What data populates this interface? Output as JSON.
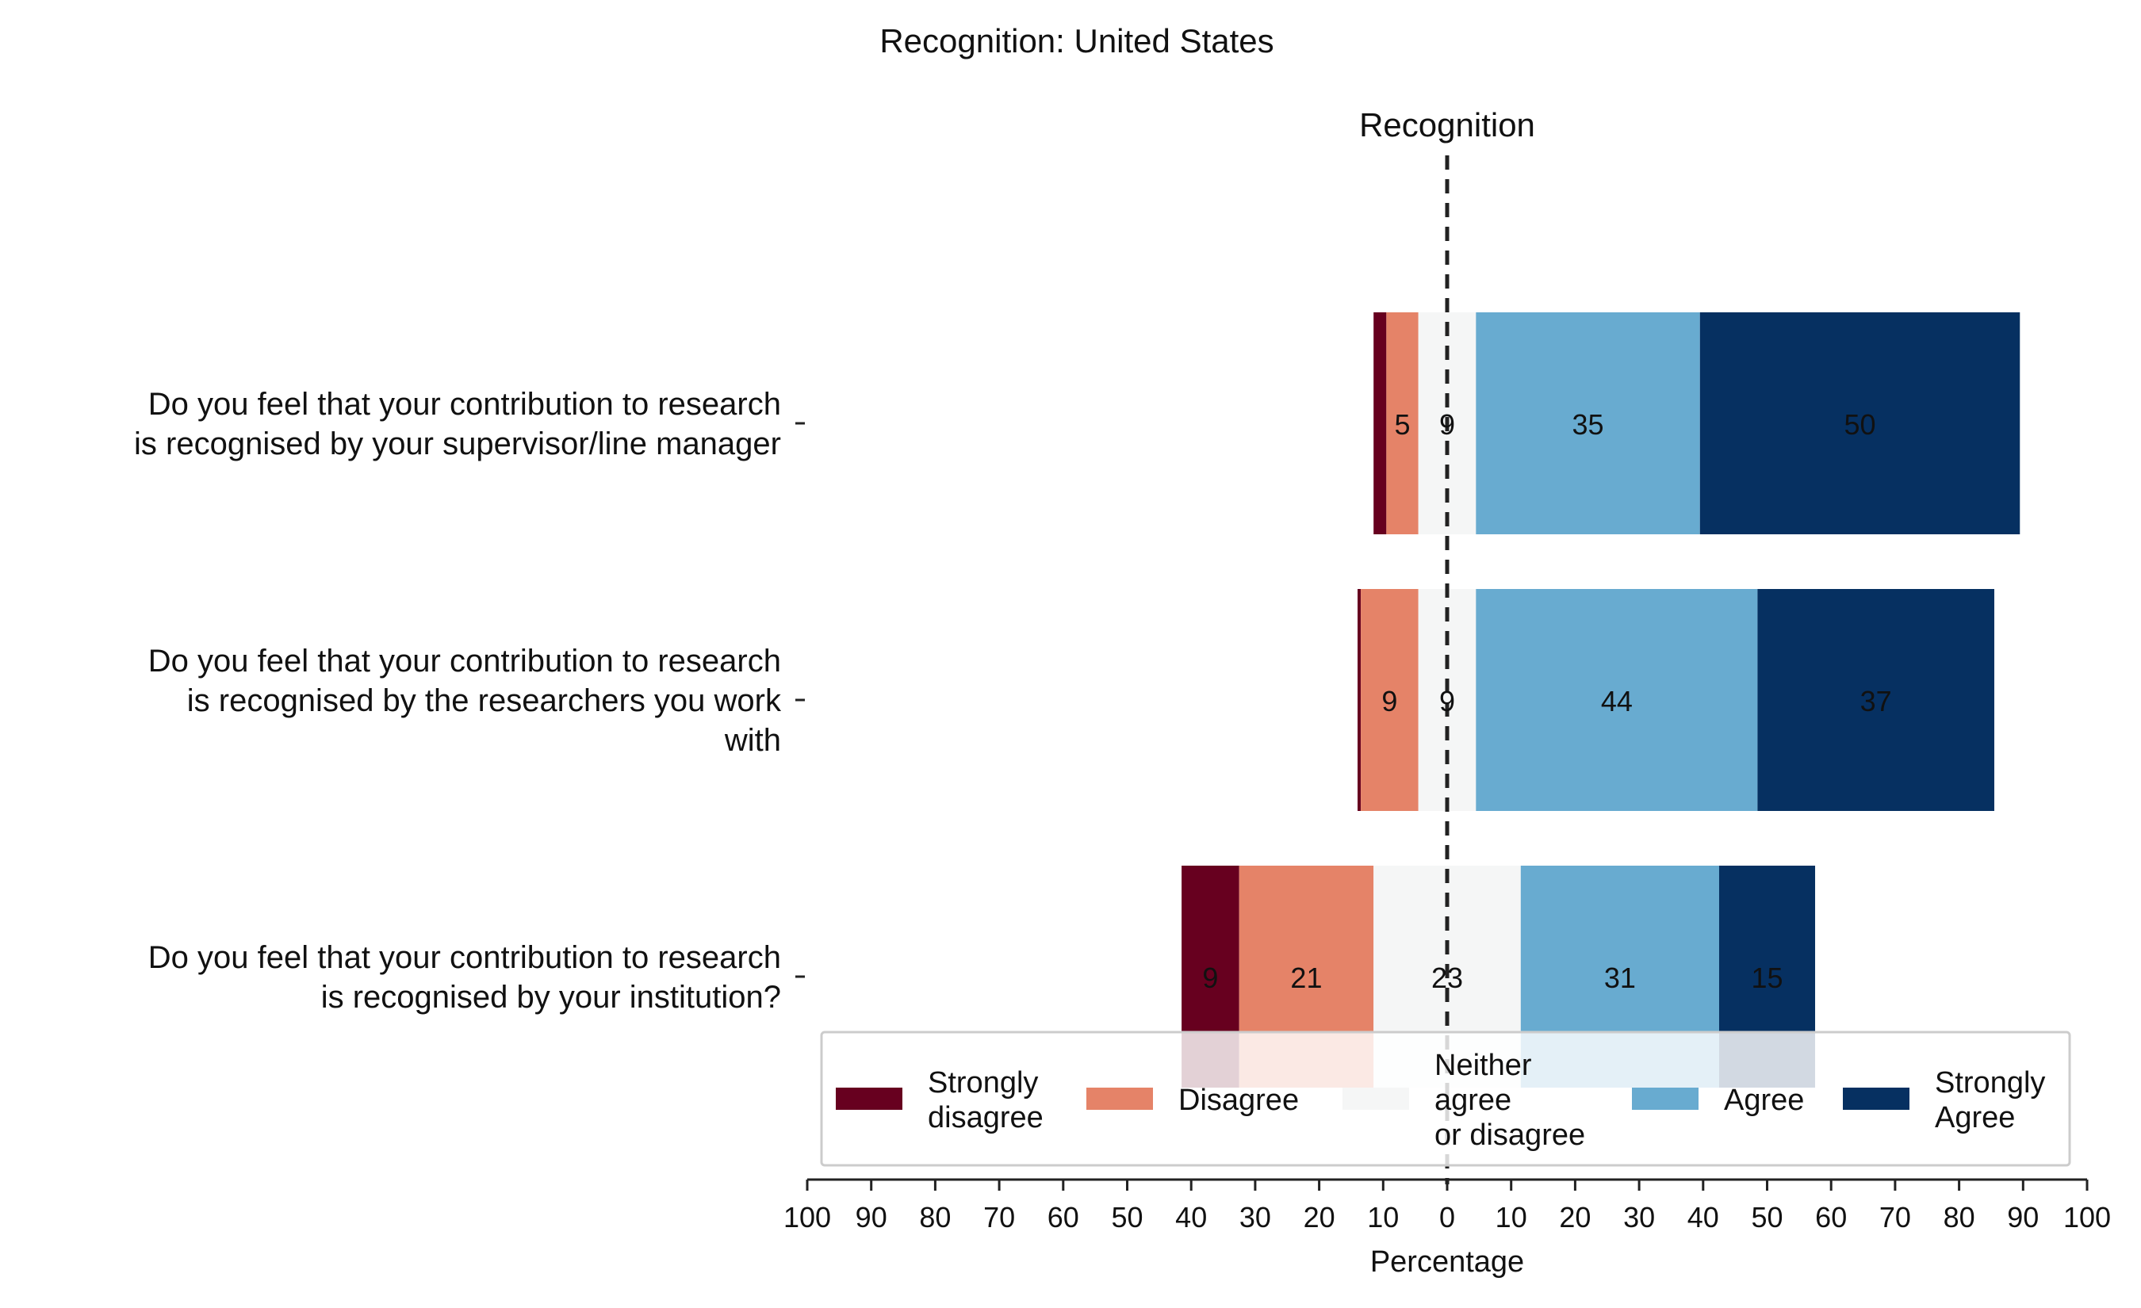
{
  "chart_data": {
    "type": "bar",
    "orientation": "horizontal",
    "stacked": true,
    "diverging": true,
    "title": "Recognition: United States",
    "subtitle": "Recognition",
    "xlabel": "Percentage",
    "ylabel": "",
    "xlim": [
      -100,
      100
    ],
    "x_ticks": [
      -100,
      -90,
      -80,
      -70,
      -60,
      -50,
      -40,
      -30,
      -20,
      -10,
      0,
      10,
      20,
      30,
      40,
      50,
      60,
      70,
      80,
      90,
      100
    ],
    "x_tick_labels": [
      "100",
      "90",
      "80",
      "70",
      "60",
      "50",
      "40",
      "30",
      "20",
      "10",
      "0",
      "10",
      "20",
      "30",
      "40",
      "50",
      "60",
      "70",
      "80",
      "90",
      "100"
    ],
    "grid": false,
    "center_line": "dashed",
    "legend_position": "bottom-right",
    "categories": [
      "Do you feel that your contribution to research is recognised by your supervisor/line manager",
      "Do you feel that your contribution to research is recognised by the researchers you work with",
      "Do you feel that your contribution to research is recognised by your institution?"
    ],
    "category_label_lines": [
      [
        "Do you feel that your contribution to research",
        "is recognised by your supervisor/line manager"
      ],
      [
        "Do you feel that your contribution to research",
        "is recognised by the researchers you work",
        "with"
      ],
      [
        "Do you feel that your contribution to research",
        "is recognised by your institution?"
      ]
    ],
    "series": [
      {
        "name": "Strongly disagree",
        "legend_lines": [
          "Strongly",
          "disagree"
        ],
        "color": "#67001f",
        "values": [
          2,
          0.5,
          9
        ],
        "labels": [
          "",
          "",
          "9"
        ]
      },
      {
        "name": "Disagree",
        "legend_lines": [
          "Disagree"
        ],
        "color": "#e58368",
        "values": [
          5,
          9,
          21
        ],
        "labels": [
          "5",
          "9",
          "21"
        ]
      },
      {
        "name": "Neither agree or disagree",
        "legend_lines": [
          "Neither",
          "agree",
          "or disagree"
        ],
        "color": "#f5f6f6",
        "values": [
          9,
          9,
          23
        ],
        "labels": [
          "9",
          "9",
          "23"
        ]
      },
      {
        "name": "Agree",
        "legend_lines": [
          "Agree"
        ],
        "color": "#68abd0",
        "values": [
          35,
          44,
          31
        ],
        "labels": [
          "35",
          "44",
          "31"
        ]
      },
      {
        "name": "Strongly Agree",
        "legend_lines": [
          "Strongly",
          "Agree"
        ],
        "color": "#063061",
        "values": [
          50,
          37,
          15
        ],
        "labels": [
          "50",
          "37",
          "15"
        ]
      }
    ]
  }
}
